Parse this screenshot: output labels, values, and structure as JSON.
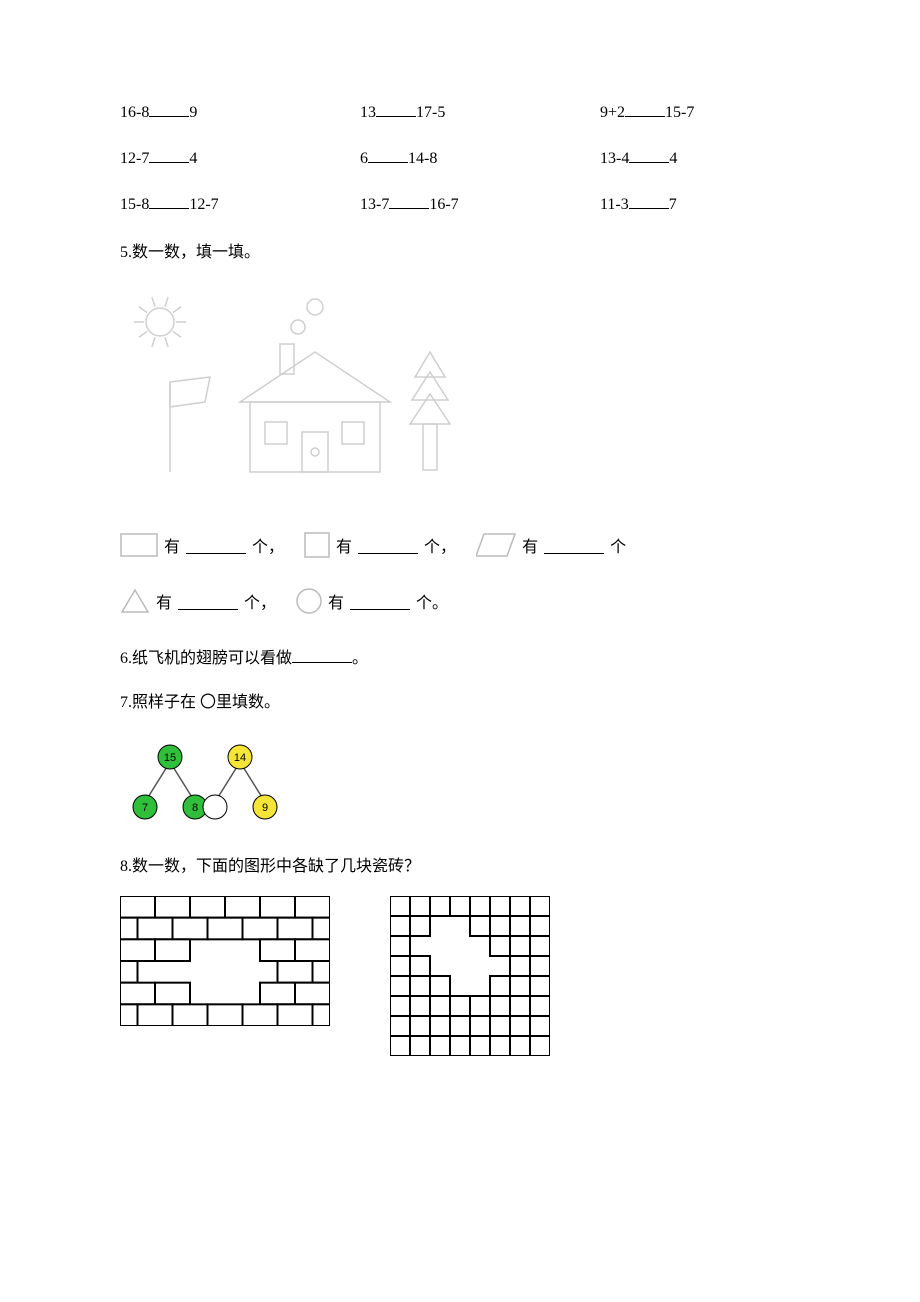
{
  "comparisons": {
    "r1": {
      "a": "16-8",
      "b": "9",
      "c": "13",
      "d": "17-5",
      "e": "9+2",
      "f": "15-7"
    },
    "r2": {
      "a": "12-7",
      "b": "4",
      "c": "6",
      "d": "14-8",
      "e": "13-4",
      "f": "4"
    },
    "r3": {
      "a": "15-8",
      "b": "12-7",
      "c": "13-7",
      "d": "16-7",
      "e": "11-3",
      "f": "7"
    }
  },
  "q5": {
    "title": "5.数一数，填一填。",
    "have": "有",
    "unit_ge_comma": "个，",
    "unit_ge": "个",
    "unit_ge_period": "个。",
    "scene_color": "#cfcfcf"
  },
  "q6": {
    "text_a": "6.纸飞机的翅膀可以看做",
    "text_b": "。"
  },
  "q7": {
    "title": "7.照样子在 〇里填数。",
    "n1": "15",
    "n2": "7",
    "n3": "8",
    "n4": "14",
    "n5": "9",
    "green": "#2fbf3a",
    "yellow": "#f5e536",
    "line": "#555"
  },
  "q8": {
    "title": "8.数一数，下面的图形中各缺了几块瓷砖？",
    "brick_rows": 6,
    "brick_cols": 6,
    "tile_size": 8
  }
}
